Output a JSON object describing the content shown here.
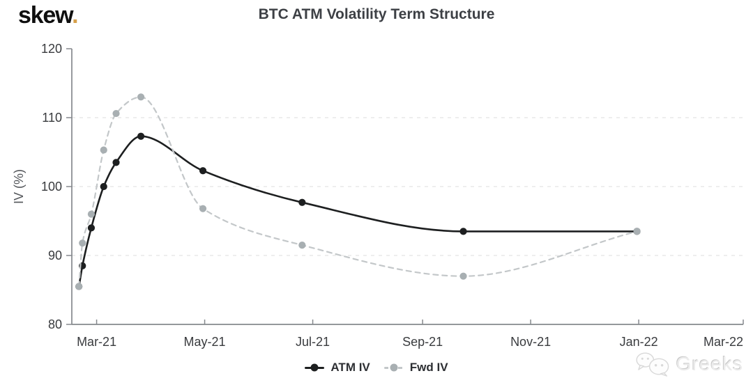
{
  "header": {
    "logo_text": "skew",
    "logo_dot": "."
  },
  "watermark": {
    "label": "Greeks",
    "icon": "wechat-icon"
  },
  "chart_data": {
    "type": "line",
    "title": "BTC ATM Volatility Term Structure",
    "ylabel": "IV (%)",
    "ylim": [
      80,
      120
    ],
    "yticks": [
      80,
      90,
      100,
      110,
      120
    ],
    "grid_y": [
      90,
      100,
      110
    ],
    "grid_on": true,
    "x_range": [
      "2021-02-15",
      "2022-03-01"
    ],
    "xticks": [
      {
        "label": "Mar-21",
        "date": "2021-03-01"
      },
      {
        "label": "May-21",
        "date": "2021-05-01"
      },
      {
        "label": "Jul-21",
        "date": "2021-07-01"
      },
      {
        "label": "Sep-21",
        "date": "2021-09-01"
      },
      {
        "label": "Nov-21",
        "date": "2021-11-01"
      },
      {
        "label": "Jan-22",
        "date": "2022-01-01"
      },
      {
        "label": "Mar-22",
        "date": "2022-03-01"
      }
    ],
    "legend_position": "bottom-center",
    "axis_color": "#85898d",
    "grid_color": "#e3e3e3",
    "tick_label_color": "#393b3e",
    "series": [
      {
        "name": "ATM IV",
        "line_color": "#1d1f20",
        "marker_color": "#1d1f20",
        "dashed": false,
        "x": [
          "2021-02-19",
          "2021-02-21",
          "2021-02-26",
          "2021-03-05",
          "2021-03-12",
          "2021-03-26",
          "2021-04-30",
          "2021-06-25",
          "2021-09-24",
          "2021-12-31"
        ],
        "values": [
          85.5,
          88.5,
          94.0,
          100.0,
          103.5,
          107.3,
          102.3,
          97.7,
          93.5,
          93.5
        ]
      },
      {
        "name": "Fwd IV",
        "line_color": "#c3c7c9",
        "marker_color": "#a8afb2",
        "dashed": true,
        "x": [
          "2021-02-19",
          "2021-02-21",
          "2021-02-26",
          "2021-03-05",
          "2021-03-12",
          "2021-03-26",
          "2021-04-30",
          "2021-06-25",
          "2021-09-24",
          "2021-12-31"
        ],
        "values": [
          85.5,
          91.8,
          96.0,
          105.3,
          110.6,
          113.0,
          96.8,
          91.5,
          87.0,
          93.5
        ]
      }
    ]
  }
}
